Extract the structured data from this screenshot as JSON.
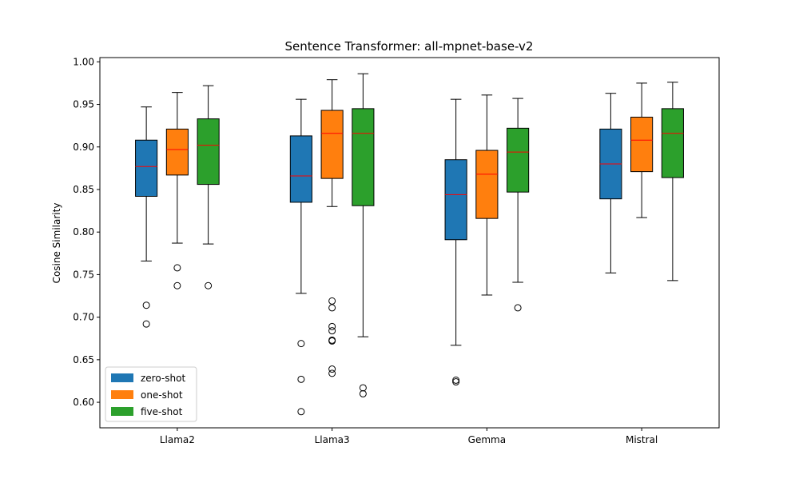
{
  "chart_data": {
    "type": "box",
    "title": "Sentence Transformer: all-mpnet-base-v2",
    "xlabel": "",
    "ylabel": "Cosine Similarity",
    "ylim": [
      0.57,
      1.005
    ],
    "yticks": [
      0.6,
      0.65,
      0.7,
      0.75,
      0.8,
      0.85,
      0.9,
      0.95,
      1.0
    ],
    "ytick_labels": [
      "0.60",
      "0.65",
      "0.70",
      "0.75",
      "0.80",
      "0.85",
      "0.90",
      "0.95",
      "1.00"
    ],
    "categories": [
      "Llama2",
      "Llama3",
      "Gemma",
      "Mistral"
    ],
    "legend_position": "lower-left",
    "series": [
      {
        "name": "zero-shot",
        "color": "#1f77b4",
        "stats": [
          {
            "whislo": 0.766,
            "q1": 0.842,
            "med": 0.877,
            "q3": 0.908,
            "whishi": 0.947,
            "fliers": [
              0.714,
              0.692
            ]
          },
          {
            "whislo": 0.728,
            "q1": 0.835,
            "med": 0.866,
            "q3": 0.913,
            "whishi": 0.956,
            "fliers": [
              0.669,
              0.627,
              0.589
            ]
          },
          {
            "whislo": 0.667,
            "q1": 0.791,
            "med": 0.844,
            "q3": 0.885,
            "whishi": 0.956,
            "fliers": [
              0.626,
              0.624
            ]
          },
          {
            "whislo": 0.752,
            "q1": 0.839,
            "med": 0.88,
            "q3": 0.921,
            "whishi": 0.963,
            "fliers": []
          }
        ]
      },
      {
        "name": "one-shot",
        "color": "#ff7f0e",
        "stats": [
          {
            "whislo": 0.787,
            "q1": 0.867,
            "med": 0.897,
            "q3": 0.921,
            "whishi": 0.964,
            "fliers": [
              0.758,
              0.737
            ]
          },
          {
            "whislo": 0.83,
            "q1": 0.863,
            "med": 0.916,
            "q3": 0.943,
            "whishi": 0.979,
            "fliers": [
              0.719,
              0.711,
              0.689,
              0.684,
              0.673,
              0.672,
              0.639,
              0.634
            ]
          },
          {
            "whislo": 0.726,
            "q1": 0.816,
            "med": 0.868,
            "q3": 0.896,
            "whishi": 0.961,
            "fliers": []
          },
          {
            "whislo": 0.817,
            "q1": 0.871,
            "med": 0.908,
            "q3": 0.935,
            "whishi": 0.975,
            "fliers": []
          }
        ]
      },
      {
        "name": "five-shot",
        "color": "#2ca02c",
        "stats": [
          {
            "whislo": 0.786,
            "q1": 0.856,
            "med": 0.902,
            "q3": 0.933,
            "whishi": 0.972,
            "fliers": [
              0.737
            ]
          },
          {
            "whislo": 0.677,
            "q1": 0.831,
            "med": 0.916,
            "q3": 0.945,
            "whishi": 0.986,
            "fliers": [
              0.617,
              0.61
            ]
          },
          {
            "whislo": 0.741,
            "q1": 0.847,
            "med": 0.894,
            "q3": 0.922,
            "whishi": 0.957,
            "fliers": [
              0.711
            ]
          },
          {
            "whislo": 0.743,
            "q1": 0.864,
            "med": 0.916,
            "q3": 0.945,
            "whishi": 0.976,
            "fliers": []
          }
        ]
      }
    ],
    "median_color": "#ff0000"
  }
}
